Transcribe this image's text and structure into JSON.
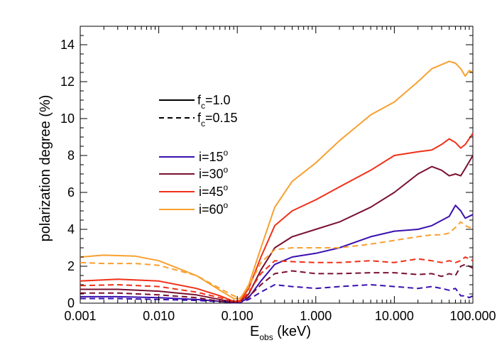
{
  "chart_data": {
    "type": "line",
    "xscale": "log",
    "xlim": [
      0.001,
      100
    ],
    "ylim": [
      0,
      15
    ],
    "xlabel": {
      "main": "E",
      "sub": "obs",
      "rest": " (keV)"
    },
    "ylabel": "polarization degree (%)",
    "x_ticks": [
      {
        "value": 0.001,
        "label": "0.001"
      },
      {
        "value": 0.01,
        "label": "0.010"
      },
      {
        "value": 0.1,
        "label": "0.100"
      },
      {
        "value": 1,
        "label": "1.000"
      },
      {
        "value": 10,
        "label": "10.000"
      },
      {
        "value": 100,
        "label": "100.000"
      }
    ],
    "y_ticks": [
      {
        "value": 0,
        "label": "0"
      },
      {
        "value": 2,
        "label": "2"
      },
      {
        "value": 4,
        "label": "4"
      },
      {
        "value": 6,
        "label": "6"
      },
      {
        "value": 8,
        "label": "8"
      },
      {
        "value": 10,
        "label": "10"
      },
      {
        "value": 12,
        "label": "12"
      },
      {
        "value": 14,
        "label": "14"
      }
    ],
    "legend_styles": [
      {
        "style": "solid",
        "pre": "f",
        "sub": "c",
        "post": "=1.0"
      },
      {
        "style": "dashed",
        "pre": "f",
        "sub": "c",
        "post": "=0.15"
      }
    ],
    "legend_series": [
      {
        "pre": "i=15",
        "sup": "o",
        "color": "#3a10b0"
      },
      {
        "pre": "i=30",
        "sup": "o",
        "color": "#7a1030"
      },
      {
        "pre": "i=45",
        "sup": "o",
        "color": "#f03018"
      },
      {
        "pre": "i=60",
        "sup": "o",
        "color": "#f8a030"
      }
    ],
    "series": [
      {
        "name": "i=15 fc=1.0",
        "style": "solid",
        "color": "#3a10b0",
        "points": [
          [
            0.001,
            0.35
          ],
          [
            0.003,
            0.35
          ],
          [
            0.01,
            0.3
          ],
          [
            0.03,
            0.2
          ],
          [
            0.06,
            0.1
          ],
          [
            0.09,
            0.02
          ],
          [
            0.11,
            0.05
          ],
          [
            0.14,
            0.3
          ],
          [
            0.2,
            1.2
          ],
          [
            0.3,
            2.1
          ],
          [
            0.5,
            2.5
          ],
          [
            1,
            2.7
          ],
          [
            2,
            3.0
          ],
          [
            5,
            3.6
          ],
          [
            10,
            3.9
          ],
          [
            20,
            4.0
          ],
          [
            30,
            4.2
          ],
          [
            50,
            4.7
          ],
          [
            60,
            5.3
          ],
          [
            70,
            5.0
          ],
          [
            80,
            4.6
          ],
          [
            100,
            4.8
          ]
        ]
      },
      {
        "name": "i=30 fc=1.0",
        "style": "solid",
        "color": "#7a1030",
        "points": [
          [
            0.001,
            0.75
          ],
          [
            0.003,
            0.75
          ],
          [
            0.01,
            0.65
          ],
          [
            0.03,
            0.45
          ],
          [
            0.06,
            0.2
          ],
          [
            0.09,
            0.05
          ],
          [
            0.11,
            0.1
          ],
          [
            0.14,
            0.5
          ],
          [
            0.2,
            1.8
          ],
          [
            0.3,
            3.0
          ],
          [
            0.5,
            3.6
          ],
          [
            1,
            4.0
          ],
          [
            2,
            4.4
          ],
          [
            5,
            5.2
          ],
          [
            10,
            6.0
          ],
          [
            20,
            7.0
          ],
          [
            30,
            7.4
          ],
          [
            40,
            7.2
          ],
          [
            50,
            6.9
          ],
          [
            60,
            7.0
          ],
          [
            70,
            6.9
          ],
          [
            80,
            7.3
          ],
          [
            100,
            8.0
          ]
        ]
      },
      {
        "name": "i=45 fc=1.0",
        "style": "solid",
        "color": "#f03018",
        "points": [
          [
            0.001,
            1.2
          ],
          [
            0.003,
            1.3
          ],
          [
            0.01,
            1.2
          ],
          [
            0.03,
            0.8
          ],
          [
            0.06,
            0.4
          ],
          [
            0.09,
            0.1
          ],
          [
            0.11,
            0.15
          ],
          [
            0.14,
            0.8
          ],
          [
            0.2,
            2.5
          ],
          [
            0.3,
            4.2
          ],
          [
            0.5,
            5.0
          ],
          [
            1,
            5.6
          ],
          [
            2,
            6.3
          ],
          [
            5,
            7.2
          ],
          [
            10,
            8.0
          ],
          [
            20,
            8.2
          ],
          [
            30,
            8.3
          ],
          [
            40,
            8.6
          ],
          [
            50,
            8.9
          ],
          [
            60,
            8.7
          ],
          [
            70,
            8.4
          ],
          [
            80,
            8.6
          ],
          [
            100,
            9.2
          ]
        ]
      },
      {
        "name": "i=60 fc=1.0",
        "style": "solid",
        "color": "#f8a030",
        "points": [
          [
            0.001,
            2.5
          ],
          [
            0.002,
            2.6
          ],
          [
            0.005,
            2.55
          ],
          [
            0.01,
            2.3
          ],
          [
            0.03,
            1.5
          ],
          [
            0.06,
            0.7
          ],
          [
            0.09,
            0.25
          ],
          [
            0.11,
            0.25
          ],
          [
            0.14,
            1.0
          ],
          [
            0.2,
            3.0
          ],
          [
            0.3,
            5.2
          ],
          [
            0.5,
            6.6
          ],
          [
            1,
            7.6
          ],
          [
            2,
            8.8
          ],
          [
            5,
            10.2
          ],
          [
            10,
            10.9
          ],
          [
            20,
            12.0
          ],
          [
            30,
            12.7
          ],
          [
            50,
            13.1
          ],
          [
            60,
            13.0
          ],
          [
            70,
            12.7
          ],
          [
            80,
            12.3
          ],
          [
            90,
            12.6
          ],
          [
            100,
            12.5
          ]
        ]
      },
      {
        "name": "i=15 fc=0.15",
        "style": "dashed",
        "color": "#3a10b0",
        "points": [
          [
            0.001,
            0.25
          ],
          [
            0.003,
            0.25
          ],
          [
            0.01,
            0.2
          ],
          [
            0.03,
            0.15
          ],
          [
            0.06,
            0.08
          ],
          [
            0.09,
            0.05
          ],
          [
            0.11,
            0.05
          ],
          [
            0.14,
            0.2
          ],
          [
            0.2,
            0.6
          ],
          [
            0.3,
            1.0
          ],
          [
            0.5,
            0.9
          ],
          [
            1,
            0.8
          ],
          [
            2,
            0.9
          ],
          [
            5,
            1.0
          ],
          [
            10,
            0.9
          ],
          [
            20,
            0.8
          ],
          [
            30,
            0.9
          ],
          [
            40,
            0.8
          ],
          [
            50,
            0.7
          ],
          [
            60,
            0.8
          ],
          [
            70,
            0.4
          ],
          [
            80,
            0.4
          ],
          [
            90,
            0.3
          ],
          [
            100,
            0.4
          ]
        ]
      },
      {
        "name": "i=30 fc=0.15",
        "style": "dashed",
        "color": "#7a1030",
        "points": [
          [
            0.001,
            0.55
          ],
          [
            0.003,
            0.55
          ],
          [
            0.01,
            0.45
          ],
          [
            0.03,
            0.3
          ],
          [
            0.06,
            0.1
          ],
          [
            0.09,
            0.05
          ],
          [
            0.11,
            0.08
          ],
          [
            0.14,
            0.35
          ],
          [
            0.2,
            1.0
          ],
          [
            0.3,
            1.6
          ],
          [
            0.5,
            1.75
          ],
          [
            1,
            1.6
          ],
          [
            2,
            1.6
          ],
          [
            5,
            1.65
          ],
          [
            10,
            1.65
          ],
          [
            20,
            1.55
          ],
          [
            30,
            1.6
          ],
          [
            40,
            1.45
          ],
          [
            50,
            1.6
          ],
          [
            60,
            1.5
          ],
          [
            70,
            2.0
          ],
          [
            80,
            2.1
          ],
          [
            90,
            2.0
          ],
          [
            100,
            1.9
          ]
        ]
      },
      {
        "name": "i=45 fc=0.15",
        "style": "dashed",
        "color": "#f03018",
        "points": [
          [
            0.001,
            0.95
          ],
          [
            0.003,
            1.0
          ],
          [
            0.01,
            0.9
          ],
          [
            0.03,
            0.6
          ],
          [
            0.06,
            0.3
          ],
          [
            0.09,
            0.1
          ],
          [
            0.11,
            0.1
          ],
          [
            0.14,
            0.6
          ],
          [
            0.2,
            1.6
          ],
          [
            0.3,
            2.3
          ],
          [
            0.5,
            2.25
          ],
          [
            1,
            2.2
          ],
          [
            2,
            2.2
          ],
          [
            5,
            2.3
          ],
          [
            10,
            2.2
          ],
          [
            20,
            2.4
          ],
          [
            30,
            2.3
          ],
          [
            40,
            2.2
          ],
          [
            50,
            2.3
          ],
          [
            60,
            2.2
          ],
          [
            70,
            2.3
          ],
          [
            80,
            2.5
          ],
          [
            90,
            2.4
          ],
          [
            100,
            2.3
          ]
        ]
      },
      {
        "name": "i=60 fc=0.15",
        "style": "dashed",
        "color": "#f8a030",
        "points": [
          [
            0.001,
            2.2
          ],
          [
            0.002,
            2.15
          ],
          [
            0.005,
            2.15
          ],
          [
            0.01,
            2.05
          ],
          [
            0.03,
            1.5
          ],
          [
            0.06,
            0.8
          ],
          [
            0.09,
            0.4
          ],
          [
            0.11,
            0.3
          ],
          [
            0.14,
            0.9
          ],
          [
            0.2,
            2.2
          ],
          [
            0.3,
            2.9
          ],
          [
            0.5,
            3.0
          ],
          [
            1,
            3.0
          ],
          [
            2,
            3.0
          ],
          [
            5,
            3.2
          ],
          [
            10,
            3.4
          ],
          [
            20,
            3.6
          ],
          [
            30,
            3.7
          ],
          [
            40,
            3.7
          ],
          [
            50,
            3.8
          ],
          [
            60,
            4.1
          ],
          [
            70,
            4.4
          ],
          [
            80,
            4.2
          ],
          [
            90,
            4.1
          ],
          [
            100,
            4.1
          ]
        ]
      }
    ]
  }
}
